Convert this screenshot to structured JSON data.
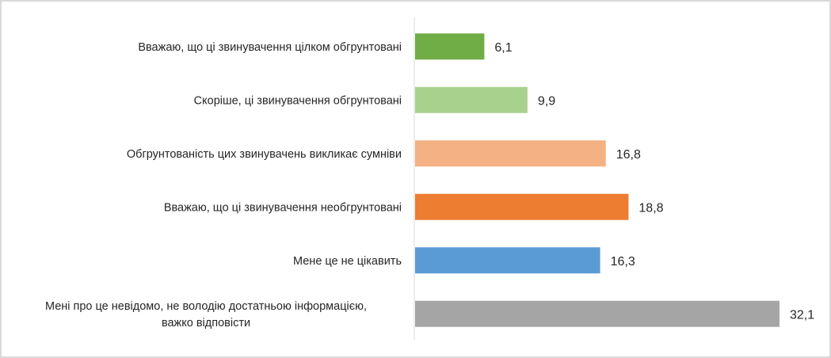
{
  "chart_data": {
    "type": "bar",
    "orientation": "horizontal",
    "title": "",
    "xlabel": "",
    "ylabel": "",
    "xlim": [
      0,
      33
    ],
    "grid": false,
    "legend": "none",
    "categories": [
      "Вважаю, що ці звинувачення цілком обгрунтовані",
      "Скоріше, ці звинувачення обгрунтовані",
      "Обгрунтованість цих звинувачень викликає сумніви",
      "Вважаю, що ці звинувачення необгрунтовані",
      "Мене це не цікавить",
      "Мені про це невідомо, не володію достатньою інформацією,\nважко відповісти"
    ],
    "values": [
      6.1,
      9.9,
      16.8,
      18.8,
      16.3,
      32.1
    ],
    "data_labels": [
      "6,1",
      "9,9",
      "16,8",
      "18,8",
      "16,3",
      "32,1"
    ],
    "colors": [
      "#70AD47",
      "#A9D18E",
      "#F4B183",
      "#ED7D31",
      "#5B9BD5",
      "#A5A5A5"
    ]
  }
}
